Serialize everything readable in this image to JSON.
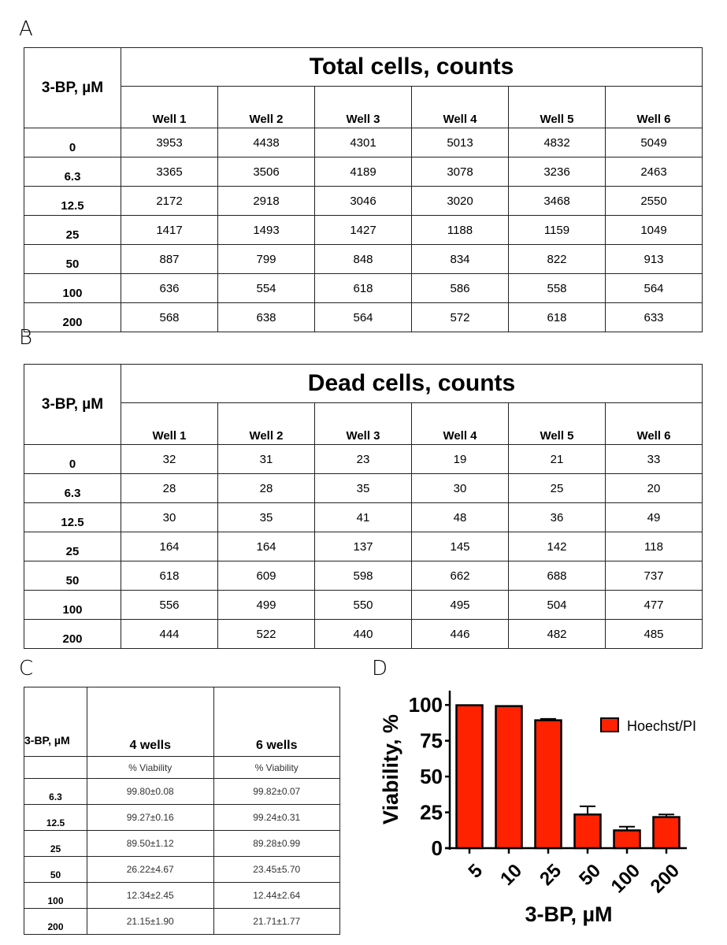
{
  "panels": {
    "a": "A",
    "b": "B",
    "c": "C",
    "d": "D"
  },
  "table_a": {
    "title": "Total cells, counts",
    "row_header": "3-BP, µM",
    "columns": [
      "Well 1",
      "Well 2",
      "Well 3",
      "Well 4",
      "Well 5",
      "Well 6"
    ],
    "rows": [
      {
        "label": "0",
        "values": [
          "3953",
          "4438",
          "4301",
          "5013",
          "4832",
          "5049"
        ]
      },
      {
        "label": "6.3",
        "values": [
          "3365",
          "3506",
          "4189",
          "3078",
          "3236",
          "2463"
        ]
      },
      {
        "label": "12.5",
        "values": [
          "2172",
          "2918",
          "3046",
          "3020",
          "3468",
          "2550"
        ]
      },
      {
        "label": "25",
        "values": [
          "1417",
          "1493",
          "1427",
          "1188",
          "1159",
          "1049"
        ]
      },
      {
        "label": "50",
        "values": [
          "887",
          "799",
          "848",
          "834",
          "822",
          "913"
        ]
      },
      {
        "label": "100",
        "values": [
          "636",
          "554",
          "618",
          "586",
          "558",
          "564"
        ]
      },
      {
        "label": "200",
        "values": [
          "568",
          "638",
          "564",
          "572",
          "618",
          "633"
        ]
      }
    ]
  },
  "table_b": {
    "title": "Dead cells, counts",
    "row_header": "3-BP, µM",
    "columns": [
      "Well 1",
      "Well 2",
      "Well 3",
      "Well 4",
      "Well 5",
      "Well 6"
    ],
    "rows": [
      {
        "label": "0",
        "values": [
          "32",
          "31",
          "23",
          "19",
          "21",
          "33"
        ]
      },
      {
        "label": "6.3",
        "values": [
          "28",
          "28",
          "35",
          "30",
          "25",
          "20"
        ]
      },
      {
        "label": "12.5",
        "values": [
          "30",
          "35",
          "41",
          "48",
          "36",
          "49"
        ]
      },
      {
        "label": "25",
        "values": [
          "164",
          "164",
          "137",
          "145",
          "142",
          "118"
        ]
      },
      {
        "label": "50",
        "values": [
          "618",
          "609",
          "598",
          "662",
          "688",
          "737"
        ]
      },
      {
        "label": "100",
        "values": [
          "556",
          "499",
          "550",
          "495",
          "504",
          "477"
        ]
      },
      {
        "label": "200",
        "values": [
          "444",
          "522",
          "440",
          "446",
          "482",
          "485"
        ]
      }
    ]
  },
  "table_c": {
    "row_header": "3-BP, µM",
    "columns": [
      "4 wells",
      "6 wells"
    ],
    "subheaders": [
      "% Viability",
      "% Viability"
    ],
    "rows": [
      {
        "label": "6.3",
        "values": [
          "99.80±0.08",
          "99.82±0.07"
        ]
      },
      {
        "label": "12.5",
        "values": [
          "99.27±0.16",
          "99.24±0.31"
        ]
      },
      {
        "label": "25",
        "values": [
          "89.50±1.12",
          "89.28±0.99"
        ]
      },
      {
        "label": "50",
        "values": [
          "26.22±4.67",
          "23.45±5.70"
        ]
      },
      {
        "label": "100",
        "values": [
          "12.34±2.45",
          "12.44±2.64"
        ]
      },
      {
        "label": "200",
        "values": [
          "21.15±1.90",
          "21.71±1.77"
        ]
      }
    ]
  },
  "chart_data": {
    "type": "bar",
    "xlabel": "3-BP, µM",
    "ylabel": "Viability, %",
    "categories": [
      "5",
      "10",
      "25",
      "50",
      "100",
      "200"
    ],
    "series": [
      {
        "name": "Hoechst/PI",
        "values": [
          99.8,
          99.2,
          89.3,
          23.5,
          12.4,
          21.7
        ],
        "errors": [
          0.1,
          0.3,
          1.0,
          5.7,
          2.6,
          1.8
        ],
        "color": "#ff2200"
      }
    ],
    "yticks": [
      0,
      25,
      50,
      75,
      100
    ],
    "ylim": [
      0,
      110
    ],
    "legend": "top-right",
    "grid": false
  }
}
